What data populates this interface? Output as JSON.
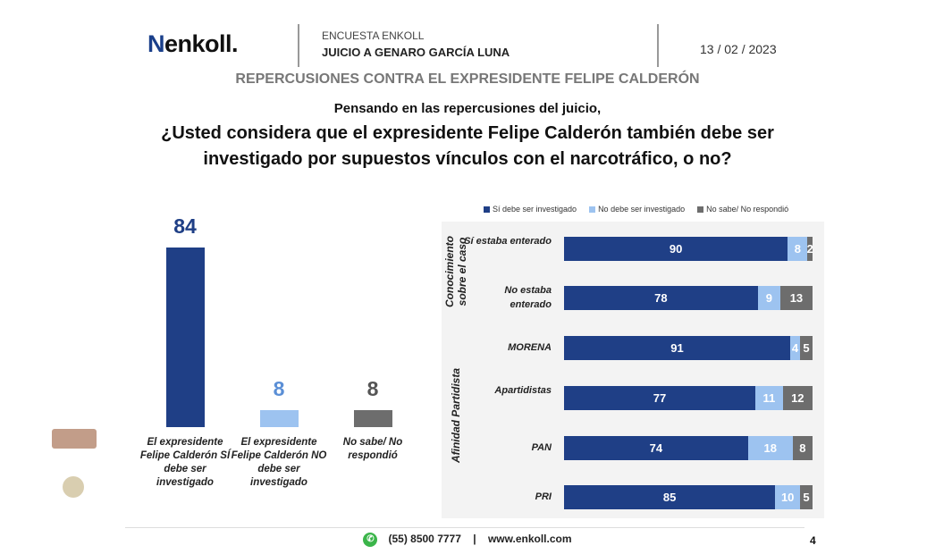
{
  "header": {
    "logo": "enkoll.",
    "survey": "ENCUESTA ENKOLL",
    "title": "JUICIO A GENARO GARCÍA LUNA",
    "date": "13 / 02 / 2023",
    "subtitle": "REPERCUSIONES CONTRA EL EXPRESIDENTE FELIPE CALDERÓN"
  },
  "question": {
    "line1": "Pensando en las repercusiones del juicio,",
    "line2": "¿Usted considera que el expresidente Felipe Calderón también debe ser",
    "line3": "investigado por supuestos vínculos con el narcotráfico, o no?"
  },
  "footer": {
    "phone": "(55) 8500 7777",
    "sep": "|",
    "web": "www.enkoll.com",
    "page": "4"
  },
  "colors": {
    "si": "#1f3f86",
    "no": "#9dc3f0",
    "ns": "#6d6d6d"
  },
  "chart_data": [
    {
      "type": "bar",
      "title": "",
      "categories": [
        "El expresidente Felipe Calderón SÍ debe ser investigado",
        "El expresidente Felipe Calderón NO debe ser investigado",
        "No sabe/ No respondió"
      ],
      "values": [
        84,
        8,
        8
      ],
      "ylim": [
        0,
        84
      ]
    },
    {
      "type": "bar",
      "stacked": true,
      "orientation": "horizontal",
      "legend_position": "top",
      "legend": [
        "Sí debe ser investigado",
        "No debe ser investigado",
        "No sabe/ No respondió"
      ],
      "groups": [
        {
          "name": "Conocimiento sobre el caso",
          "rows": [
            0,
            1
          ]
        },
        {
          "name": "Afinidad Partidista",
          "rows": [
            2,
            3,
            4,
            5
          ]
        }
      ],
      "categories": [
        "Sí estaba enterado",
        "No estaba enterado",
        "MORENA",
        "Apartidistas",
        "PAN",
        "PRI"
      ],
      "series": [
        {
          "name": "Sí debe ser investigado",
          "values": [
            90,
            78,
            91,
            77,
            74,
            85
          ]
        },
        {
          "name": "No debe ser investigado",
          "values": [
            8,
            9,
            4,
            11,
            18,
            10
          ]
        },
        {
          "name": "No sabe/ No respondió",
          "values": [
            2,
            13,
            5,
            12,
            8,
            5
          ]
        }
      ],
      "xlim": [
        0,
        100
      ]
    }
  ]
}
